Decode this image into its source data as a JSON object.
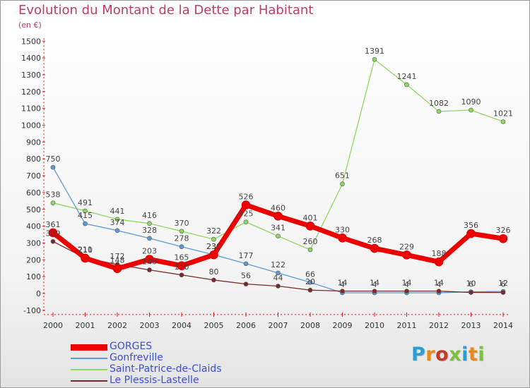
{
  "title": "Evolution du Montant de la Dette par Habitant",
  "subtitle": "(en €)",
  "logo": {
    "text": "Proxiti",
    "colors": [
      "#2a9fd6",
      "#e88a1a",
      "#c0392b",
      "#7dc142",
      "#2a9fd6",
      "#e88a1a",
      "#7dc142"
    ]
  },
  "chart_data": {
    "type": "line",
    "x": [
      "2000",
      "2001",
      "2002",
      "2003",
      "2004",
      "2005",
      "2006",
      "2007",
      "2008",
      "2009",
      "2010",
      "2011",
      "2012",
      "2013",
      "2014"
    ],
    "ylim": [
      -100,
      1500
    ],
    "yticks": [
      -100,
      0,
      100,
      200,
      300,
      400,
      500,
      600,
      700,
      800,
      900,
      1000,
      1100,
      1200,
      1300,
      1400,
      1500
    ],
    "grid": false,
    "legend_position": "bottom-left",
    "series": [
      {
        "name": "GORGES",
        "color": "#ee0000",
        "width": 7,
        "labelColor": "#444444",
        "values": [
          361,
          210,
          148,
          203,
          165,
          230,
          526,
          460,
          401,
          330,
          268,
          229,
          188,
          356,
          326
        ]
      },
      {
        "name": "Gonfreville",
        "color": "#5b9bd5",
        "width": 1.3,
        "labelColor": "#444444",
        "values": [
          750,
          415,
          374,
          328,
          278,
          230,
          177,
          122,
          66,
          4,
          4,
          4,
          4,
          10,
          12
        ]
      },
      {
        "name": "Saint-Patrice-de-Claids",
        "color": "#8fd860",
        "width": 1.3,
        "labelColor": "#444444",
        "values": [
          538,
          491,
          441,
          416,
          370,
          322,
          425,
          341,
          260,
          651,
          1391,
          1241,
          1082,
          1090,
          1021
        ]
      },
      {
        "name": "Le Plessis-Lastelle",
        "color": "#7a2a2a",
        "width": 1.3,
        "labelColor": "#444444",
        "values": [
          309,
          211,
          172,
          140,
          110,
          80,
          56,
          44,
          20,
          14,
          14,
          14,
          14,
          6,
          6
        ]
      }
    ]
  }
}
